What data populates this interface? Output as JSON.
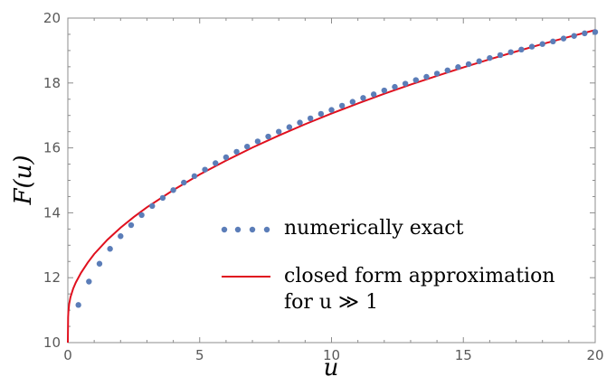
{
  "chart_data": {
    "type": "line",
    "title": "",
    "xlabel": "u",
    "ylabel": "F(u)",
    "xlim": [
      0,
      20
    ],
    "ylim": [
      10,
      20
    ],
    "xticks": [
      "0",
      "5",
      "10",
      "15",
      "20"
    ],
    "yticks": [
      "10",
      "12",
      "14",
      "16",
      "18",
      "20"
    ],
    "grid": false,
    "legend_position": "center-right",
    "colors": {
      "dots": "#5B7DB8",
      "line": "#E0101E",
      "frame": "#8c8c8c"
    },
    "series": [
      {
        "name": "numerically exact",
        "style": "dots",
        "x": [
          0.4,
          0.8,
          1.2,
          1.6,
          2.0,
          2.4,
          2.8,
          3.2,
          3.6,
          4.0,
          4.4,
          4.8,
          5.2,
          5.6,
          6.0,
          6.4,
          6.8,
          7.2,
          7.6,
          8.0,
          8.4,
          8.8,
          9.2,
          9.6,
          10.0,
          10.4,
          10.8,
          11.2,
          11.6,
          12.0,
          12.4,
          12.8,
          13.2,
          13.6,
          14.0,
          14.4,
          14.8,
          15.2,
          15.6,
          16.0,
          16.4,
          16.8,
          17.2,
          17.6,
          18.0,
          18.4,
          18.8,
          19.2,
          19.6,
          20.0
        ],
        "y": [
          11.16,
          11.88,
          12.43,
          12.89,
          13.28,
          13.62,
          13.93,
          14.21,
          14.46,
          14.7,
          14.93,
          15.13,
          15.33,
          15.53,
          15.71,
          15.88,
          16.04,
          16.2,
          16.35,
          16.5,
          16.64,
          16.78,
          16.91,
          17.05,
          17.17,
          17.3,
          17.42,
          17.54,
          17.65,
          17.77,
          17.88,
          17.98,
          18.09,
          18.19,
          18.29,
          18.39,
          18.49,
          18.58,
          18.67,
          18.77,
          18.86,
          18.95,
          19.03,
          19.12,
          19.2,
          19.28,
          19.37,
          19.45,
          19.53,
          19.57
        ]
      },
      {
        "name": "closed form approximation",
        "name_line2": "for u ≫ 1",
        "style": "line",
        "x": [
          0.0,
          0.01,
          0.02,
          0.05,
          0.1,
          0.2,
          0.3,
          0.5,
          0.75,
          1.0,
          1.5,
          2.0,
          2.5,
          3.0,
          4.0,
          5.0,
          6.0,
          7.0,
          8.0,
          9.0,
          10.0,
          11.0,
          12.0,
          13.0,
          14.0,
          15.0,
          16.0,
          17.0,
          18.0,
          19.0,
          20.0
        ],
        "y": [
          10.0,
          10.78,
          10.94,
          11.19,
          11.4,
          11.66,
          11.85,
          12.15,
          12.46,
          12.73,
          13.17,
          13.54,
          13.87,
          14.17,
          14.7,
          15.18,
          15.61,
          16.01,
          16.38,
          16.73,
          17.06,
          17.37,
          17.67,
          17.95,
          18.22,
          18.48,
          18.73,
          18.97,
          19.2,
          19.42,
          19.63
        ]
      }
    ]
  }
}
